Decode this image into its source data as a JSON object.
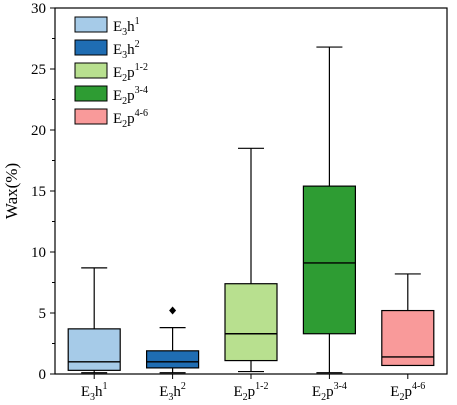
{
  "chart_data": {
    "type": "box",
    "ylabel": "Wax(%)",
    "ylim": [
      0,
      30
    ],
    "yticks": [
      "0",
      "5",
      "10",
      "15",
      "20",
      "25",
      "30"
    ],
    "legend_position": "top-left",
    "series": [
      {
        "base": "E",
        "sub": "3",
        "main": "h",
        "sup": "1",
        "color": "#a6cbe8",
        "min": 0.1,
        "q1": 0.3,
        "median": 1.0,
        "q3": 3.7,
        "max": 8.7,
        "outliers": []
      },
      {
        "base": "E",
        "sub": "3",
        "main": "h",
        "sup": "2",
        "color": "#1f6db3",
        "min": 0.1,
        "q1": 0.5,
        "median": 1.0,
        "q3": 1.9,
        "max": 3.8,
        "outliers": [
          5.2
        ]
      },
      {
        "base": "E",
        "sub": "2",
        "main": "p",
        "sup": "1-2",
        "color": "#b8e08f",
        "min": 0.2,
        "q1": 1.1,
        "median": 3.3,
        "q3": 7.4,
        "max": 18.5,
        "outliers": []
      },
      {
        "base": "E",
        "sub": "2",
        "main": "p",
        "sup": "3-4",
        "color": "#2e9c33",
        "min": 0.1,
        "q1": 3.3,
        "median": 9.1,
        "q3": 15.4,
        "max": 26.8,
        "outliers": []
      },
      {
        "base": "E",
        "sub": "2",
        "main": "p",
        "sup": "4-6",
        "color": "#f99a9a",
        "min": 0.7,
        "q1": 0.7,
        "median": 1.4,
        "q3": 5.2,
        "max": 8.2,
        "outliers": []
      }
    ]
  }
}
